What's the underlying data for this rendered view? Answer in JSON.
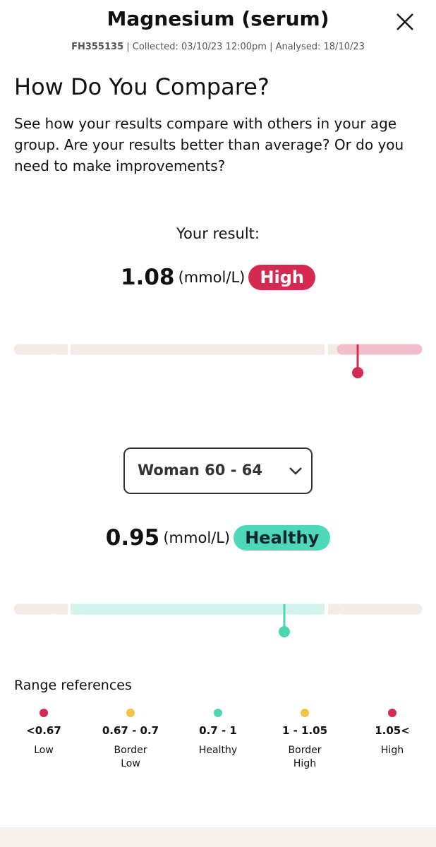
{
  "header": {
    "title": "Magnesium (serum)",
    "id": "FH355135",
    "meta": "| Collected: 03/10/23 12:00pm | Analysed: 18/10/23"
  },
  "section": {
    "title": "How Do You Compare?",
    "description": "See how your results compare with others in your age group. Are your results better than average? Or do you need to make improvements?"
  },
  "your_result": {
    "label": "Your result:",
    "value": "1.08",
    "unit": "(mmol/L)",
    "status": "High"
  },
  "comparison": {
    "group": "Woman 60 - 64",
    "value": "0.95",
    "unit": "(mmol/L)",
    "status": "Healthy"
  },
  "range_references": {
    "title": "Range references",
    "items": [
      {
        "range": "<0.67",
        "label": "Low"
      },
      {
        "range": "0.67 - 0.7",
        "label": "Border Low"
      },
      {
        "range": "0.7 - 1",
        "label": "Healthy"
      },
      {
        "range": "1 - 1.05",
        "label": "Border High"
      },
      {
        "range": "1.05<",
        "label": "High"
      }
    ]
  }
}
